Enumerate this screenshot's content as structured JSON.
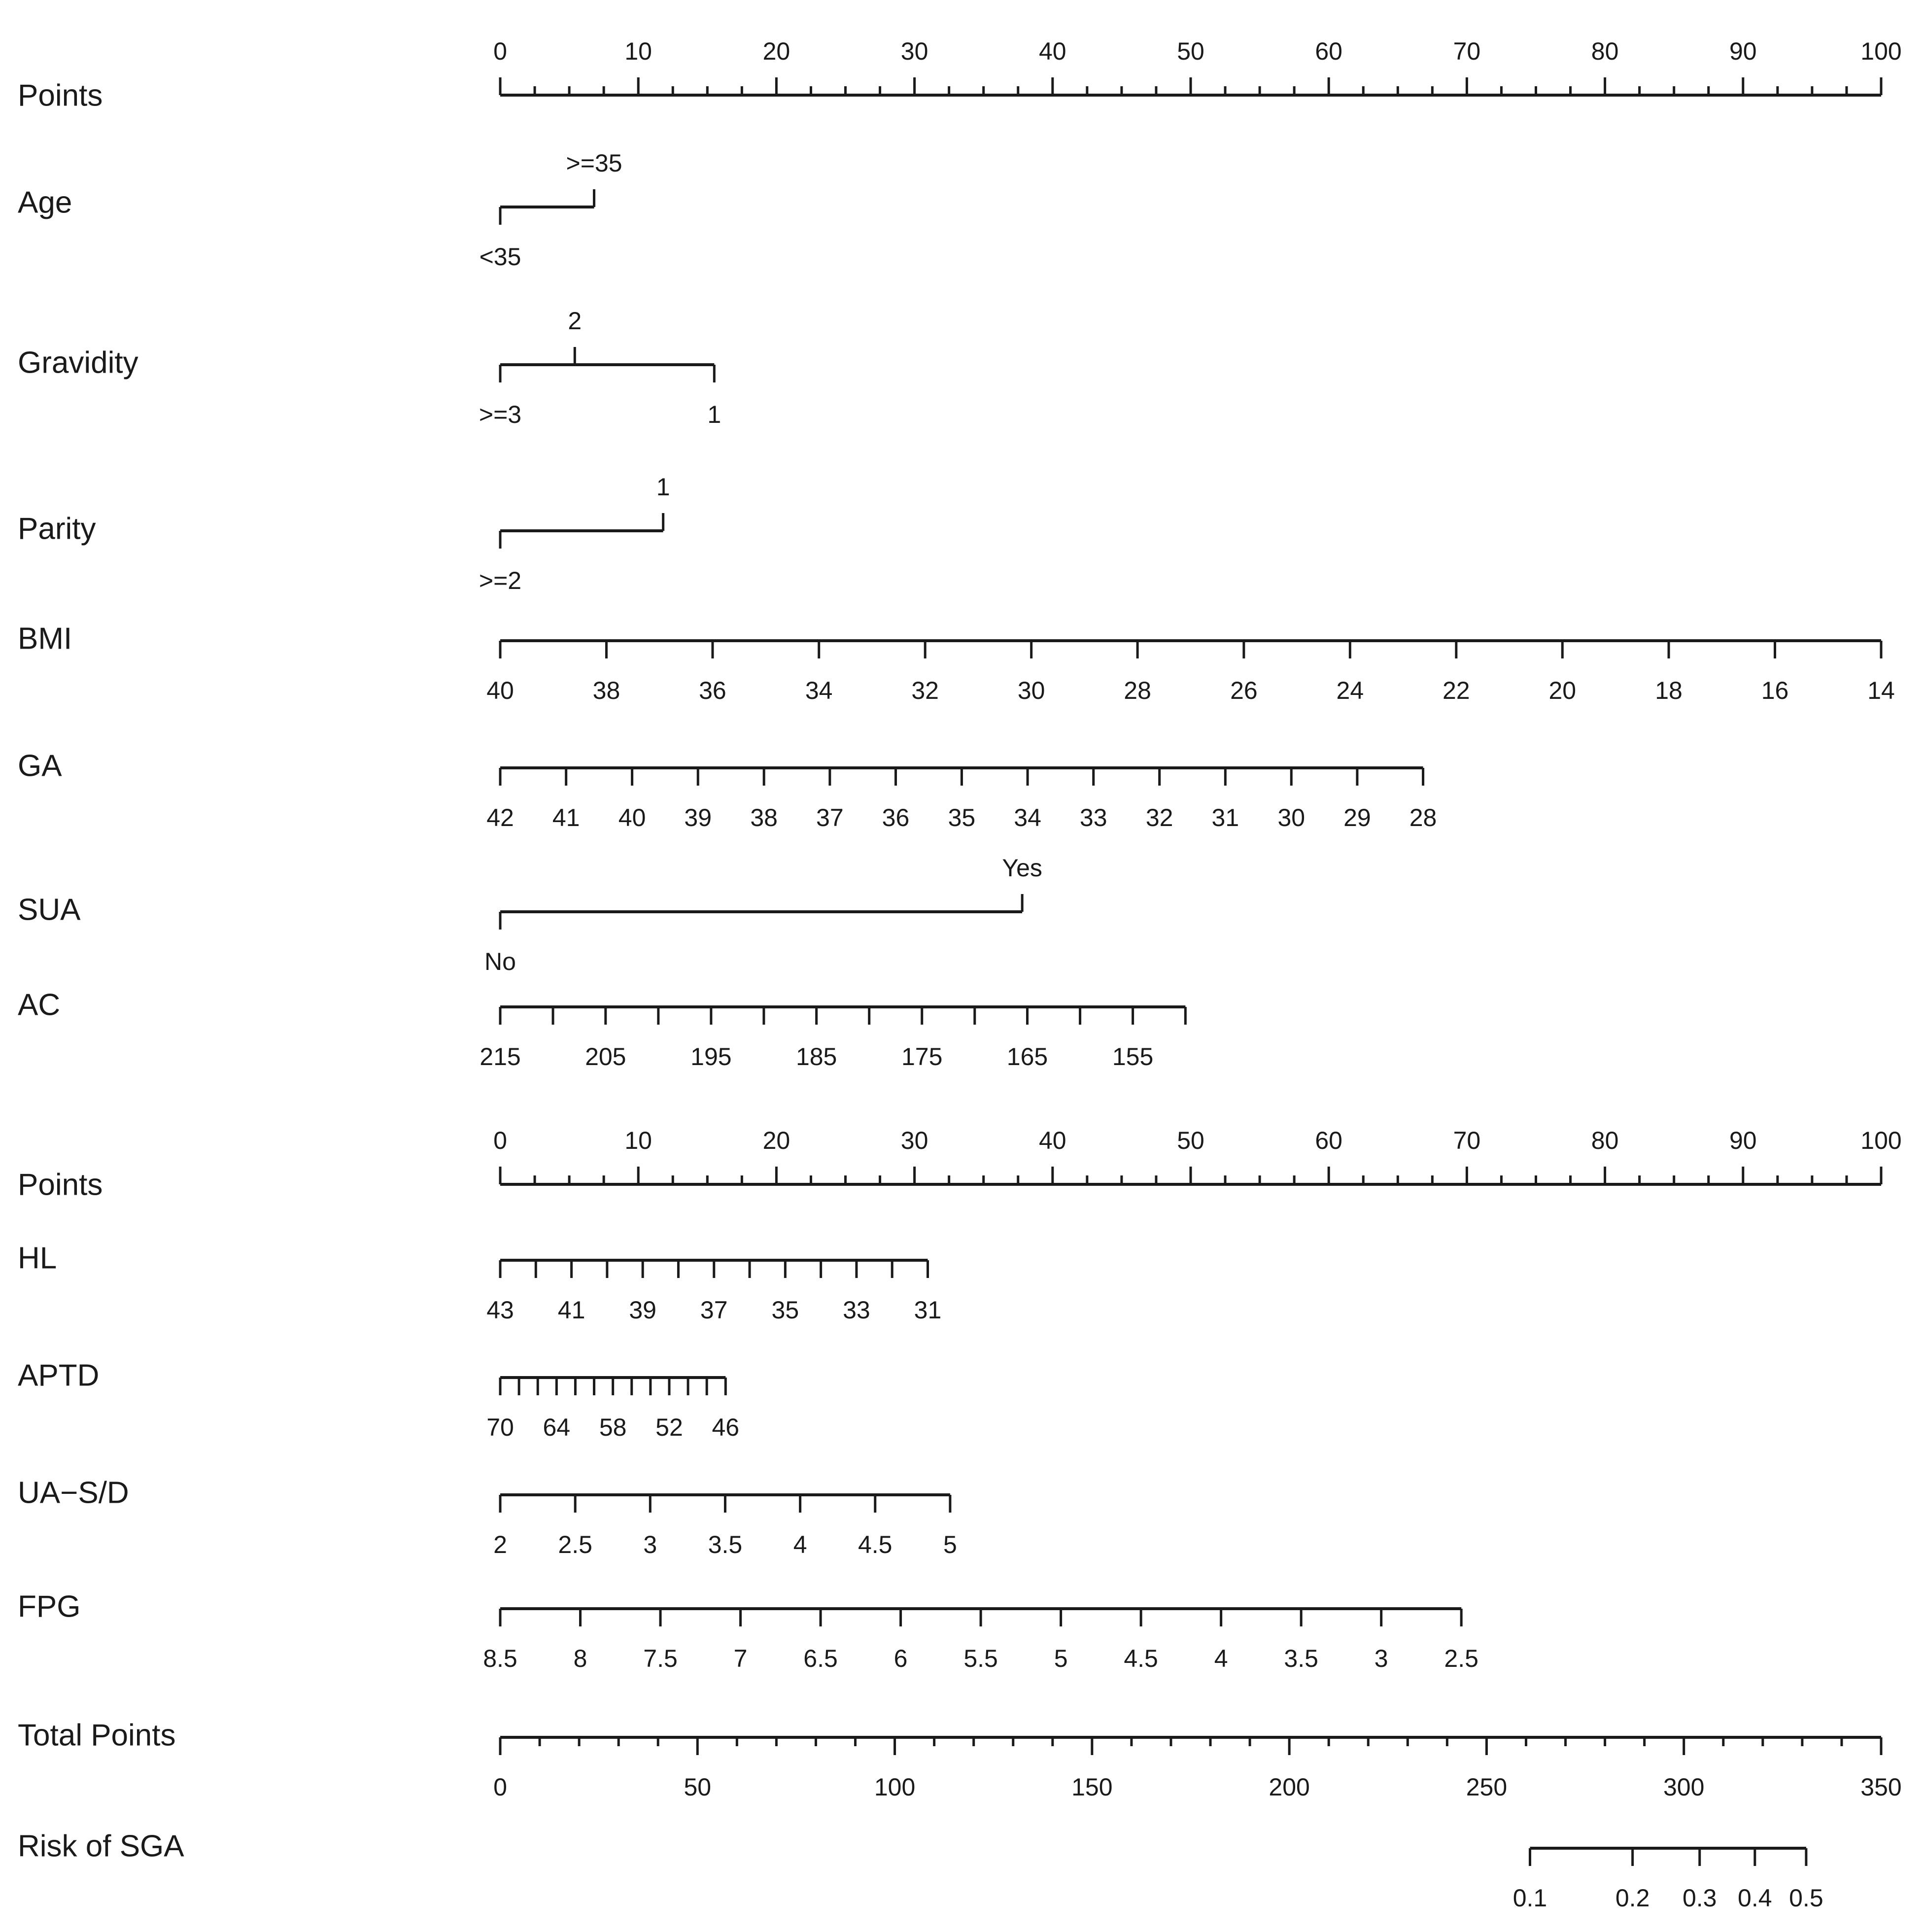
{
  "chart_data": {
    "type": "nomogram",
    "title": "",
    "points_range": [
      0,
      100
    ],
    "rows": [
      {
        "id": "points_top",
        "label": "Points",
        "kind": "points",
        "labels_side": "above",
        "minor_step": 2.5,
        "ticks": [
          {
            "p": 0,
            "label": "0"
          },
          {
            "p": 10,
            "label": "10"
          },
          {
            "p": 20,
            "label": "20"
          },
          {
            "p": 30,
            "label": "30"
          },
          {
            "p": 40,
            "label": "40"
          },
          {
            "p": 50,
            "label": "50"
          },
          {
            "p": 60,
            "label": "60"
          },
          {
            "p": 70,
            "label": "70"
          },
          {
            "p": 80,
            "label": "80"
          },
          {
            "p": 90,
            "label": "90"
          },
          {
            "p": 100,
            "label": "100"
          }
        ]
      },
      {
        "id": "age",
        "label": "Age",
        "kind": "categorical",
        "ticks": [
          {
            "p": 0,
            "label": "<35",
            "side": "below"
          },
          {
            "p": 6.8,
            "label": ">=35",
            "side": "above"
          }
        ]
      },
      {
        "id": "gravidity",
        "label": "Gravidity",
        "kind": "categorical",
        "ticks": [
          {
            "p": 0,
            "label": ">=3",
            "side": "below"
          },
          {
            "p": 5.4,
            "label": "2",
            "side": "above"
          },
          {
            "p": 15.5,
            "label": "1",
            "side": "below"
          }
        ]
      },
      {
        "id": "parity",
        "label": "Parity",
        "kind": "categorical",
        "ticks": [
          {
            "p": 0,
            "label": ">=2",
            "side": "below"
          },
          {
            "p": 11.8,
            "label": "1",
            "side": "above"
          }
        ]
      },
      {
        "id": "bmi",
        "label": "BMI",
        "kind": "continuous",
        "labels_side": "below",
        "ticks": [
          {
            "p": 0,
            "label": "40"
          },
          {
            "p": 7.69,
            "label": "38"
          },
          {
            "p": 15.38,
            "label": "36"
          },
          {
            "p": 23.08,
            "label": "34"
          },
          {
            "p": 30.77,
            "label": "32"
          },
          {
            "p": 38.46,
            "label": "30"
          },
          {
            "p": 46.15,
            "label": "28"
          },
          {
            "p": 53.85,
            "label": "26"
          },
          {
            "p": 61.54,
            "label": "24"
          },
          {
            "p": 69.23,
            "label": "22"
          },
          {
            "p": 76.92,
            "label": "20"
          },
          {
            "p": 84.62,
            "label": "18"
          },
          {
            "p": 92.31,
            "label": "16"
          },
          {
            "p": 100,
            "label": "14"
          }
        ]
      },
      {
        "id": "ga",
        "label": "GA",
        "kind": "continuous",
        "labels_side": "below",
        "ticks": [
          {
            "p": 0,
            "label": "42"
          },
          {
            "p": 4.77,
            "label": "41"
          },
          {
            "p": 9.55,
            "label": "40"
          },
          {
            "p": 14.32,
            "label": "39"
          },
          {
            "p": 19.1,
            "label": "38"
          },
          {
            "p": 23.87,
            "label": "37"
          },
          {
            "p": 28.64,
            "label": "36"
          },
          {
            "p": 33.42,
            "label": "35"
          },
          {
            "p": 38.19,
            "label": "34"
          },
          {
            "p": 42.96,
            "label": "33"
          },
          {
            "p": 47.74,
            "label": "32"
          },
          {
            "p": 52.51,
            "label": "31"
          },
          {
            "p": 57.29,
            "label": "30"
          },
          {
            "p": 62.06,
            "label": "29"
          },
          {
            "p": 66.83,
            "label": "28"
          }
        ]
      },
      {
        "id": "sua",
        "label": "SUA",
        "kind": "categorical",
        "ticks": [
          {
            "p": 0,
            "label": "No",
            "side": "below"
          },
          {
            "p": 37.8,
            "label": "Yes",
            "side": "above"
          }
        ]
      },
      {
        "id": "ac",
        "label": "AC",
        "kind": "continuous",
        "labels_side": "below",
        "ticks": [
          {
            "p": 0,
            "label": "215"
          },
          {
            "p": 3.82,
            "label": ""
          },
          {
            "p": 7.63,
            "label": "205"
          },
          {
            "p": 11.45,
            "label": ""
          },
          {
            "p": 15.27,
            "label": "195"
          },
          {
            "p": 19.09,
            "label": ""
          },
          {
            "p": 22.9,
            "label": "185"
          },
          {
            "p": 26.72,
            "label": ""
          },
          {
            "p": 30.54,
            "label": "175"
          },
          {
            "p": 34.36,
            "label": ""
          },
          {
            "p": 38.17,
            "label": "165"
          },
          {
            "p": 41.99,
            "label": ""
          },
          {
            "p": 45.81,
            "label": "155"
          },
          {
            "p": 49.62,
            "label": ""
          }
        ]
      },
      {
        "id": "points_mid",
        "label": "Points",
        "kind": "points",
        "labels_side": "above",
        "minor_step": 2.5,
        "ticks": [
          {
            "p": 0,
            "label": "0"
          },
          {
            "p": 10,
            "label": "10"
          },
          {
            "p": 20,
            "label": "20"
          },
          {
            "p": 30,
            "label": "30"
          },
          {
            "p": 40,
            "label": "40"
          },
          {
            "p": 50,
            "label": "50"
          },
          {
            "p": 60,
            "label": "60"
          },
          {
            "p": 70,
            "label": "70"
          },
          {
            "p": 80,
            "label": "80"
          },
          {
            "p": 90,
            "label": "90"
          },
          {
            "p": 100,
            "label": "100"
          }
        ]
      },
      {
        "id": "hl",
        "label": "HL",
        "kind": "continuous",
        "labels_side": "below",
        "ticks": [
          {
            "p": 0,
            "label": "43"
          },
          {
            "p": 2.58,
            "label": ""
          },
          {
            "p": 5.16,
            "label": "41"
          },
          {
            "p": 7.74,
            "label": ""
          },
          {
            "p": 10.32,
            "label": "39"
          },
          {
            "p": 12.9,
            "label": ""
          },
          {
            "p": 15.48,
            "label": "37"
          },
          {
            "p": 18.06,
            "label": ""
          },
          {
            "p": 20.64,
            "label": "35"
          },
          {
            "p": 23.22,
            "label": ""
          },
          {
            "p": 25.8,
            "label": "33"
          },
          {
            "p": 28.38,
            "label": ""
          },
          {
            "p": 30.96,
            "label": "31"
          }
        ]
      },
      {
        "id": "aptd",
        "label": "APTD",
        "kind": "continuous",
        "labels_side": "below",
        "ticks": [
          {
            "p": 0,
            "label": "70"
          },
          {
            "p": 1.36,
            "label": ""
          },
          {
            "p": 2.72,
            "label": ""
          },
          {
            "p": 4.08,
            "label": "64"
          },
          {
            "p": 5.44,
            "label": ""
          },
          {
            "p": 6.8,
            "label": ""
          },
          {
            "p": 8.16,
            "label": "58"
          },
          {
            "p": 9.52,
            "label": ""
          },
          {
            "p": 10.88,
            "label": ""
          },
          {
            "p": 12.24,
            "label": "52"
          },
          {
            "p": 13.6,
            "label": ""
          },
          {
            "p": 14.96,
            "label": ""
          },
          {
            "p": 16.32,
            "label": "46"
          }
        ]
      },
      {
        "id": "ua_sd",
        "label": "UA−S/D",
        "kind": "continuous",
        "labels_side": "below",
        "ticks": [
          {
            "p": 0,
            "label": "2"
          },
          {
            "p": 5.43,
            "label": "2.5"
          },
          {
            "p": 10.86,
            "label": "3"
          },
          {
            "p": 16.29,
            "label": "3.5"
          },
          {
            "p": 21.72,
            "label": "4"
          },
          {
            "p": 27.15,
            "label": "4.5"
          },
          {
            "p": 32.58,
            "label": "5"
          }
        ]
      },
      {
        "id": "fpg",
        "label": "FPG",
        "kind": "continuous",
        "labels_side": "below",
        "ticks": [
          {
            "p": 0,
            "label": "8.5"
          },
          {
            "p": 5.8,
            "label": "8"
          },
          {
            "p": 11.6,
            "label": "7.5"
          },
          {
            "p": 17.4,
            "label": "7"
          },
          {
            "p": 23.2,
            "label": "6.5"
          },
          {
            "p": 29.0,
            "label": "6"
          },
          {
            "p": 34.8,
            "label": "5.5"
          },
          {
            "p": 40.6,
            "label": "5"
          },
          {
            "p": 46.4,
            "label": "4.5"
          },
          {
            "p": 52.2,
            "label": "4"
          },
          {
            "p": 58.0,
            "label": "3.5"
          },
          {
            "p": 63.8,
            "label": "3"
          },
          {
            "p": 69.6,
            "label": "2.5"
          }
        ]
      },
      {
        "id": "total_points",
        "label": "Total Points",
        "kind": "total",
        "labels_side": "below",
        "range": [
          0,
          350
        ],
        "minor_step": 10,
        "ticks": [
          {
            "v": 0,
            "label": "0"
          },
          {
            "v": 50,
            "label": "50"
          },
          {
            "v": 100,
            "label": "100"
          },
          {
            "v": 150,
            "label": "150"
          },
          {
            "v": 200,
            "label": "200"
          },
          {
            "v": 250,
            "label": "250"
          },
          {
            "v": 300,
            "label": "300"
          },
          {
            "v": 350,
            "label": "350"
          }
        ]
      },
      {
        "id": "risk",
        "label": "Risk of SGA",
        "kind": "risk",
        "labels_side": "below",
        "ticks": [
          {
            "v": 261,
            "label": "0.1"
          },
          {
            "v": 287,
            "label": "0.2"
          },
          {
            "v": 304,
            "label": "0.3"
          },
          {
            "v": 318,
            "label": "0.4"
          },
          {
            "v": 331,
            "label": "0.5"
          }
        ]
      }
    ]
  }
}
